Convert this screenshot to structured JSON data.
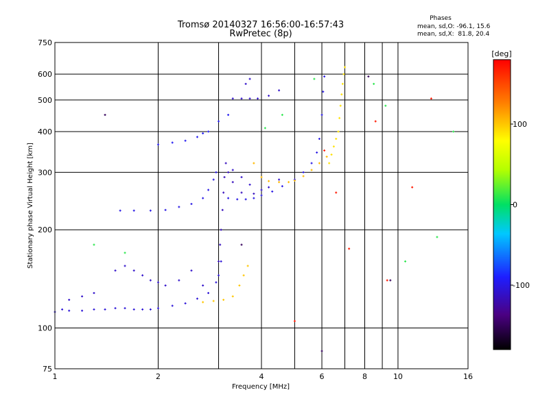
{
  "chart_data": {
    "type": "scatter",
    "title": "Tromsø 20140327 16:56:00-16:57:43",
    "subtitle": "RwPretec (8p)",
    "xlabel": "Frequency [MHz]",
    "ylabel": "Stationary phase Virtual Height [km]",
    "x_scale": "log",
    "y_scale": "log",
    "xlim": [
      1,
      16
    ],
    "ylim": [
      75,
      750
    ],
    "x_ticks": [
      1,
      2,
      4,
      6,
      8,
      10,
      16
    ],
    "x_tick_labels": [
      "1",
      "2",
      "4",
      "6",
      "8",
      "10",
      "16"
    ],
    "x_gridlines": [
      1,
      2,
      3,
      4,
      5,
      6,
      7,
      8,
      9,
      10
    ],
    "y_ticks": [
      75,
      100,
      200,
      300,
      400,
      500,
      600,
      750
    ],
    "y_tick_labels": [
      "75",
      "100",
      "200",
      "300",
      "400",
      "500",
      "600",
      "750"
    ],
    "y_gridlines": [
      100,
      200,
      300,
      400,
      500,
      600
    ],
    "grid": true,
    "stats": {
      "heading": "Phases",
      "line_o": "mean, sd,O: -96.1, 15.6",
      "line_x": "mean, sd,X:  81.8, 20.4"
    },
    "colorbar": {
      "label": "[deg]",
      "range": [
        -180,
        180
      ],
      "ticks": [
        100,
        0,
        -100
      ],
      "tick_labels": [
        "100",
        "0",
        "-100"
      ]
    },
    "traces": [
      {
        "phase": -105,
        "points": [
          [
            1.0,
            112
          ],
          [
            1.05,
            114
          ],
          [
            1.1,
            113
          ],
          [
            1.2,
            113
          ],
          [
            1.3,
            114
          ],
          [
            1.4,
            114
          ],
          [
            1.5,
            115
          ],
          [
            1.6,
            115
          ],
          [
            1.7,
            114
          ],
          [
            1.8,
            114
          ],
          [
            1.9,
            114
          ],
          [
            2.0,
            115
          ],
          [
            2.2,
            117
          ],
          [
            2.4,
            119
          ],
          [
            2.6,
            123
          ],
          [
            2.8,
            128
          ],
          [
            2.95,
            138
          ],
          [
            3.0,
            145
          ],
          [
            3.05,
            160
          ]
        ]
      },
      {
        "phase": -110,
        "points": [
          [
            1.1,
            122
          ],
          [
            1.2,
            125
          ],
          [
            1.3,
            128
          ],
          [
            1.5,
            150
          ],
          [
            1.6,
            155
          ],
          [
            1.7,
            150
          ],
          [
            1.8,
            145
          ],
          [
            1.9,
            140
          ],
          [
            2.0,
            138
          ],
          [
            2.1,
            135
          ],
          [
            2.3,
            140
          ],
          [
            2.5,
            150
          ],
          [
            2.7,
            135
          ]
        ]
      },
      {
        "phase": -115,
        "points": [
          [
            3.0,
            160
          ],
          [
            3.03,
            180
          ],
          [
            3.05,
            200
          ],
          [
            3.08,
            230
          ],
          [
            3.1,
            260
          ],
          [
            3.12,
            290
          ],
          [
            3.15,
            320
          ],
          [
            3.2,
            300
          ],
          [
            3.3,
            280
          ],
          [
            3.5,
            260
          ],
          [
            3.8,
            258
          ]
        ]
      },
      {
        "phase": -100,
        "points": [
          [
            1.55,
            229
          ],
          [
            1.7,
            229
          ],
          [
            1.9,
            229
          ],
          [
            2.1,
            230
          ],
          [
            2.3,
            235
          ],
          [
            2.5,
            240
          ],
          [
            2.7,
            250
          ],
          [
            2.8,
            265
          ],
          [
            2.9,
            285
          ],
          [
            2.95,
            300
          ]
        ]
      },
      {
        "phase": -100,
        "points": [
          [
            3.2,
            250
          ],
          [
            3.4,
            248
          ],
          [
            3.6,
            248
          ],
          [
            3.8,
            250
          ],
          [
            4.0,
            255
          ],
          [
            4.3,
            262
          ],
          [
            4.6,
            272
          ],
          [
            5.0,
            285
          ],
          [
            5.3,
            300
          ],
          [
            5.6,
            320
          ],
          [
            5.8,
            345
          ],
          [
            5.9,
            380
          ],
          [
            6.0,
            450
          ],
          [
            6.05,
            530
          ],
          [
            6.1,
            590
          ]
        ]
      },
      {
        "phase": -110,
        "points": [
          [
            3.3,
            305
          ],
          [
            3.5,
            290
          ],
          [
            3.7,
            275
          ],
          [
            4.0,
            265
          ],
          [
            4.2,
            270
          ],
          [
            4.5,
            285
          ]
        ]
      },
      {
        "phase": -95,
        "points": [
          [
            2.0,
            365
          ],
          [
            2.2,
            370
          ],
          [
            2.4,
            375
          ],
          [
            2.6,
            385
          ],
          [
            2.7,
            395
          ],
          [
            2.8,
            400
          ],
          [
            3.0,
            430
          ],
          [
            3.2,
            450
          ]
        ]
      },
      {
        "phase": -110,
        "points": [
          [
            3.3,
            505
          ],
          [
            3.5,
            505
          ],
          [
            3.7,
            505
          ],
          [
            3.9,
            505
          ],
          [
            4.2,
            515
          ],
          [
            4.5,
            535
          ],
          [
            3.6,
            560
          ],
          [
            3.7,
            580
          ]
        ]
      },
      {
        "phase": 100,
        "points": [
          [
            2.7,
            120
          ],
          [
            2.9,
            121
          ],
          [
            3.1,
            122
          ],
          [
            3.3,
            125
          ],
          [
            3.45,
            135
          ],
          [
            3.55,
            145
          ],
          [
            3.65,
            155
          ]
        ]
      },
      {
        "phase": 105,
        "points": [
          [
            3.8,
            320
          ],
          [
            4.0,
            290
          ],
          [
            4.2,
            282
          ],
          [
            4.5,
            280
          ],
          [
            4.8,
            280
          ],
          [
            5.0,
            283
          ],
          [
            5.3,
            292
          ],
          [
            5.6,
            305
          ],
          [
            5.9,
            320
          ],
          [
            6.2,
            335
          ]
        ]
      },
      {
        "phase": 90,
        "points": [
          [
            6.3,
            320
          ],
          [
            6.4,
            340
          ],
          [
            6.5,
            360
          ],
          [
            6.6,
            380
          ],
          [
            6.7,
            400
          ],
          [
            6.75,
            440
          ],
          [
            6.8,
            480
          ],
          [
            6.85,
            520
          ],
          [
            6.9,
            560
          ],
          [
            6.95,
            600
          ],
          [
            7.0,
            630
          ]
        ]
      },
      {
        "phase": 10,
        "points": [
          [
            1.3,
            180
          ],
          [
            1.6,
            170
          ],
          [
            4.1,
            410
          ],
          [
            4.6,
            450
          ],
          [
            5.7,
            580
          ],
          [
            8.5,
            560
          ],
          [
            9.2,
            480
          ],
          [
            10.5,
            160
          ],
          [
            13.0,
            190
          ],
          [
            14.5,
            400
          ]
        ]
      },
      {
        "phase": 170,
        "points": [
          [
            5.0,
            105
          ],
          [
            6.1,
            350
          ],
          [
            6.6,
            260
          ],
          [
            7.2,
            175
          ],
          [
            8.6,
            430
          ],
          [
            9.3,
            140
          ],
          [
            11.0,
            270
          ],
          [
            12.5,
            505
          ]
        ]
      },
      {
        "phase": -150,
        "points": [
          [
            6.0,
            85
          ],
          [
            9.5,
            140
          ],
          [
            3.5,
            180
          ],
          [
            1.4,
            450
          ],
          [
            8.2,
            590
          ]
        ]
      }
    ]
  }
}
